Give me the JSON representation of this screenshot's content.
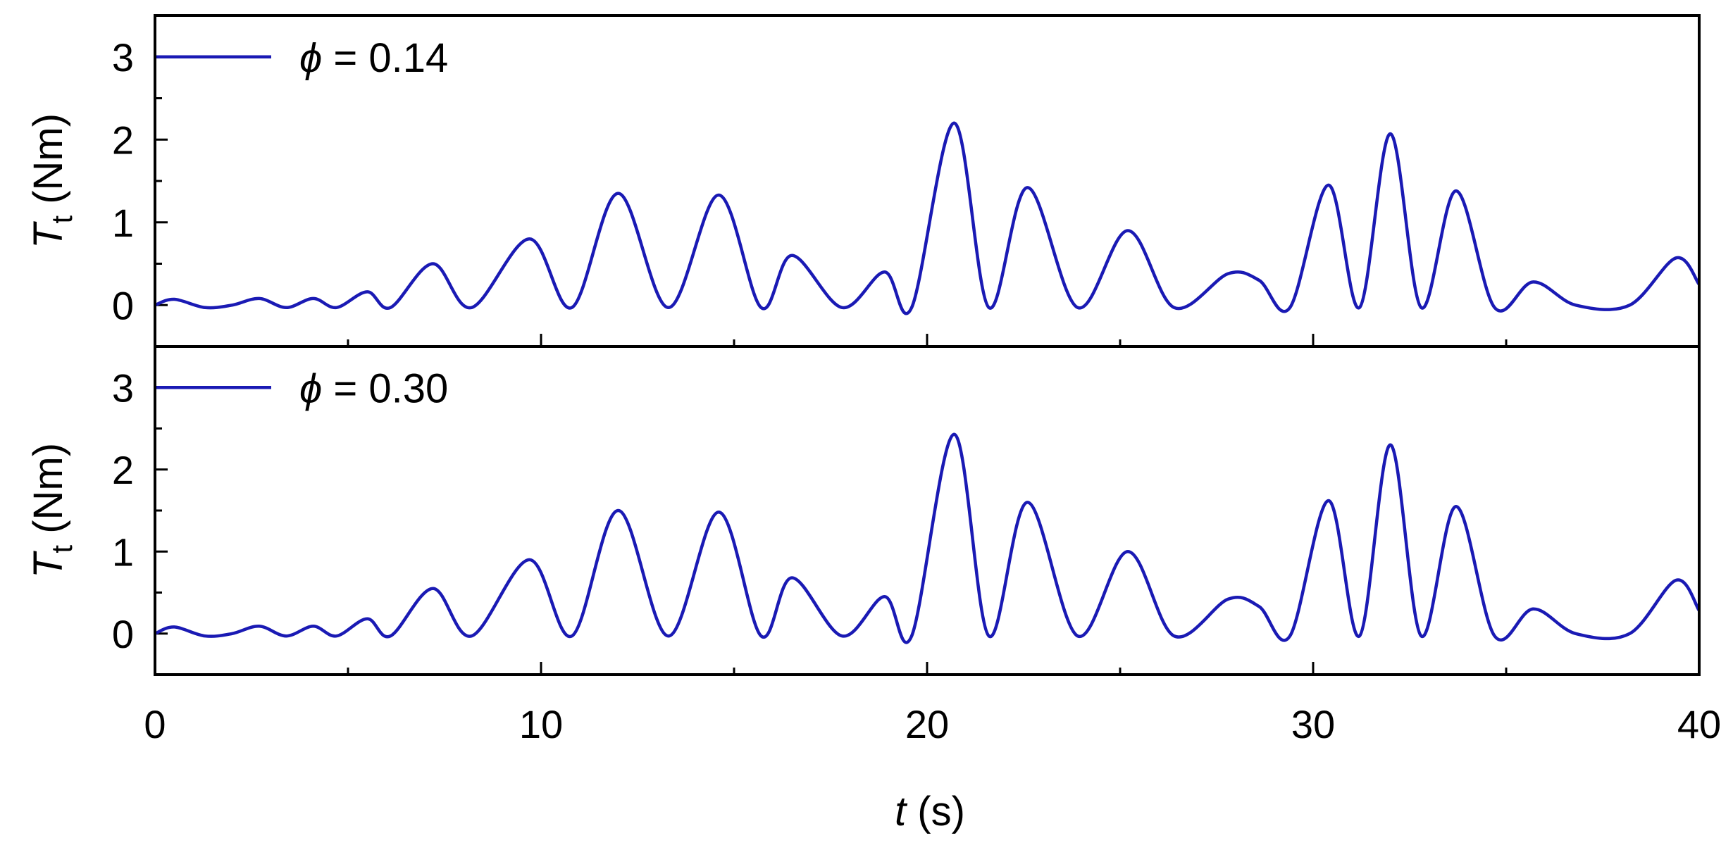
{
  "chart_data": {
    "type": "line",
    "layout": "two stacked panels sharing the t axis",
    "xlim": [
      0,
      40
    ],
    "x_ticks": [
      "0",
      "10",
      "20",
      "30",
      "40"
    ],
    "x_minor_ticks": [
      5,
      15,
      25,
      35
    ],
    "xlabel_var": "t",
    "xlabel_unit": " (s)",
    "ylim": [
      -0.5,
      3.5
    ],
    "y_ticks": [
      "0",
      "1",
      "2",
      "3"
    ],
    "grid": false,
    "line_color": "#1a1ab4",
    "panels": [
      {
        "ylabel_var": "T",
        "ylabel_sub": "t",
        "ylabel_unit": " (Nm)",
        "legend_symbol": "ϕ",
        "legend_value": " = 0.14",
        "legend_position": "top-left",
        "series": [
          {
            "legend": "ϕ = 0.14",
            "x": [
              0,
              0.5,
              1.3,
              2,
              2.7,
              3.4,
              4.1,
              4.7,
              5.5,
              6.1,
              7.2,
              8.2,
              9.7,
              10.8,
              12,
              13.3,
              14.6,
              15.7,
              16.5,
              17.8,
              18.9,
              19.6,
              20.7,
              21.6,
              22.6,
              23.9,
              25.2,
              26.4,
              27.8,
              28.6,
              29.4,
              30.4,
              31.2,
              32,
              32.8,
              33.7,
              34.7,
              35.7,
              36.8,
              38.2,
              39.4,
              40
            ],
            "y": [
              0,
              0.07,
              -0.03,
              0,
              0.08,
              -0.03,
              0.08,
              -0.03,
              0.16,
              -0.03,
              0.5,
              -0.03,
              0.8,
              -0.03,
              1.35,
              -0.03,
              1.33,
              -0.03,
              0.6,
              -0.03,
              0.4,
              -0.03,
              2.2,
              -0.03,
              1.42,
              -0.03,
              0.9,
              -0.03,
              0.38,
              0.3,
              -0.03,
              1.45,
              -0.03,
              2.07,
              -0.03,
              1.38,
              -0.03,
              0.28,
              0,
              0,
              0.57,
              0.25
            ]
          }
        ]
      },
      {
        "ylabel_var": "T",
        "ylabel_sub": "t",
        "ylabel_unit": " (Nm)",
        "legend_symbol": "ϕ",
        "legend_value": " = 0.30",
        "legend_position": "top-left",
        "series": [
          {
            "legend": "ϕ = 0.30",
            "x": [
              0,
              0.5,
              1.3,
              2,
              2.7,
              3.4,
              4.1,
              4.7,
              5.5,
              6.1,
              7.2,
              8.2,
              9.7,
              10.8,
              12,
              13.3,
              14.6,
              15.7,
              16.5,
              17.8,
              18.9,
              19.6,
              20.7,
              21.6,
              22.6,
              23.9,
              25.2,
              26.4,
              27.8,
              28.6,
              29.4,
              30.4,
              31.2,
              32,
              32.8,
              33.7,
              34.7,
              35.7,
              36.8,
              38.2,
              39.4,
              40
            ],
            "y": [
              0,
              0.08,
              -0.03,
              0,
              0.09,
              -0.03,
              0.09,
              -0.03,
              0.18,
              -0.03,
              0.55,
              -0.03,
              0.9,
              -0.03,
              1.5,
              -0.03,
              1.48,
              -0.03,
              0.68,
              -0.03,
              0.45,
              -0.03,
              2.43,
              -0.03,
              1.6,
              -0.03,
              1.0,
              -0.03,
              0.42,
              0.33,
              -0.03,
              1.62,
              -0.03,
              2.3,
              -0.03,
              1.55,
              -0.03,
              0.3,
              0,
              0,
              0.65,
              0.28
            ]
          }
        ]
      }
    ]
  }
}
